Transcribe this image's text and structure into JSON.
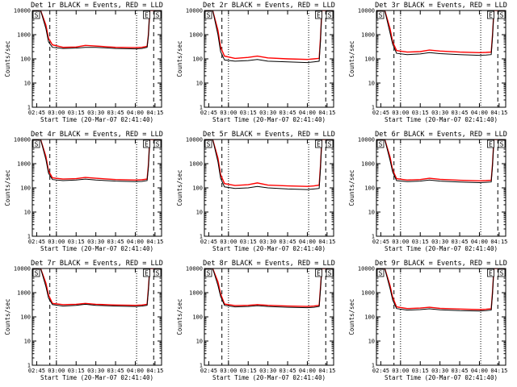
{
  "figure": {
    "x_tick_labels": [
      "02:45",
      "03:00",
      "03:15",
      "03:30",
      "03:45",
      "04:00",
      "04:15"
    ],
    "y_tick_labels": [
      "1",
      "10",
      "100",
      "1000",
      "10000"
    ],
    "xlabel": "Start Time (20-Mar-07 02:41:40)",
    "ylabel": "Counts/sec",
    "flag_labels": [
      "S",
      "E",
      "S"
    ],
    "colors": {
      "events": "#000000",
      "lld": "#ff0000",
      "axes": "#000000",
      "background": "#ffffff"
    }
  },
  "chart_data": [
    {
      "type": "line",
      "title": "Det 1r BLACK = Events, RED = LLD",
      "xlabel": "Start Time (20-Mar-07 02:41:40)",
      "ylabel": "Counts/sec",
      "x_range": [
        "02:41:40",
        "04:20"
      ],
      "ylim": [
        1,
        10000
      ],
      "y_scale": "log",
      "series": [
        {
          "name": "Events",
          "color": "#000000",
          "x": [
            "02:41:40",
            "02:48",
            "02:52",
            "02:54",
            "02:57",
            "03:05",
            "03:15",
            "03:22",
            "03:30",
            "03:45",
            "04:00",
            "04:05",
            "04:09",
            "04:10",
            "04:11",
            "04:12",
            "04:20"
          ],
          "values": [
            10000,
            10000,
            1800,
            500,
            300,
            270,
            280,
            300,
            300,
            270,
            260,
            270,
            300,
            900,
            10000,
            10000,
            10000
          ]
        },
        {
          "name": "LLD",
          "color": "#ff0000",
          "x": [
            "02:41:40",
            "02:48",
            "02:52",
            "02:54",
            "02:57",
            "03:05",
            "03:15",
            "03:22",
            "03:30",
            "03:45",
            "04:00",
            "04:05",
            "04:09",
            "04:10",
            "04:11",
            "04:12",
            "04:20"
          ],
          "values": [
            10000,
            10000,
            2500,
            700,
            380,
            300,
            310,
            360,
            340,
            300,
            290,
            300,
            330,
            1000,
            10000,
            10000,
            10000
          ]
        }
      ],
      "vlines": [
        "02:55",
        "03:00",
        "04:01",
        "04:14"
      ]
    },
    {
      "type": "line",
      "title": "Det 2r BLACK = Events, RED = LLD",
      "xlabel": "Start Time (20-Mar-07 02:41:40)",
      "ylabel": "Counts/sec",
      "x_range": [
        "02:41:40",
        "04:20"
      ],
      "ylim": [
        1,
        10000
      ],
      "y_scale": "log",
      "series": [
        {
          "name": "Events",
          "color": "#000000",
          "x": [
            "02:41:40",
            "02:48",
            "02:52",
            "02:54",
            "02:57",
            "03:05",
            "03:15",
            "03:22",
            "03:30",
            "03:45",
            "04:00",
            "04:05",
            "04:09",
            "04:10",
            "04:11",
            "04:12",
            "04:20"
          ],
          "values": [
            10000,
            10000,
            1000,
            200,
            90,
            80,
            85,
            95,
            80,
            75,
            70,
            75,
            80,
            500,
            10000,
            10000,
            10000
          ]
        },
        {
          "name": "LLD",
          "color": "#ff0000",
          "x": [
            "02:41:40",
            "02:48",
            "02:52",
            "02:54",
            "02:57",
            "03:05",
            "03:15",
            "03:22",
            "03:30",
            "03:45",
            "04:00",
            "04:05",
            "04:09",
            "04:10",
            "04:11",
            "04:12",
            "04:20"
          ],
          "values": [
            10000,
            10000,
            1500,
            300,
            130,
            105,
            115,
            130,
            110,
            100,
            95,
            100,
            105,
            700,
            10000,
            10000,
            10000
          ]
        }
      ],
      "vlines": [
        "02:55",
        "03:00",
        "04:01",
        "04:14"
      ]
    },
    {
      "type": "line",
      "title": "Det 3r BLACK = Events, RED = LLD",
      "xlabel": "Start Time (20-Mar-07 02:41:40)",
      "ylabel": "Counts/sec",
      "x_range": [
        "02:41:40",
        "04:20"
      ],
      "ylim": [
        1,
        10000
      ],
      "y_scale": "log",
      "series": [
        {
          "name": "Events",
          "color": "#000000",
          "x": [
            "02:41:40",
            "02:48",
            "02:52",
            "02:54",
            "02:57",
            "03:05",
            "03:15",
            "03:22",
            "03:30",
            "03:45",
            "04:00",
            "04:05",
            "04:09",
            "04:10",
            "04:11",
            "04:12",
            "04:20"
          ],
          "values": [
            10000,
            10000,
            1200,
            400,
            170,
            150,
            160,
            180,
            165,
            150,
            140,
            145,
            150,
            800,
            10000,
            10000,
            10000
          ]
        },
        {
          "name": "LLD",
          "color": "#ff0000",
          "x": [
            "02:41:40",
            "02:48",
            "02:52",
            "02:54",
            "02:57",
            "03:05",
            "03:15",
            "03:22",
            "03:30",
            "03:45",
            "04:00",
            "04:05",
            "04:09",
            "04:10",
            "04:11",
            "04:12",
            "04:20"
          ],
          "values": [
            10000,
            10000,
            1800,
            500,
            220,
            190,
            200,
            230,
            210,
            190,
            180,
            185,
            190,
            1000,
            10000,
            10000,
            10000
          ]
        }
      ],
      "vlines": [
        "02:55",
        "03:00",
        "04:01",
        "04:14"
      ]
    },
    {
      "type": "line",
      "title": "Det 4r BLACK = Events, RED = LLD",
      "xlabel": "Start Time (20-Mar-07 02:41:40)",
      "ylabel": "Counts/sec",
      "x_range": [
        "02:41:40",
        "04:20"
      ],
      "ylim": [
        1,
        10000
      ],
      "y_scale": "log",
      "series": [
        {
          "name": "Events",
          "color": "#000000",
          "x": [
            "02:41:40",
            "02:48",
            "02:52",
            "02:54",
            "02:57",
            "03:05",
            "03:15",
            "03:22",
            "03:30",
            "03:45",
            "04:00",
            "04:05",
            "04:09",
            "04:10",
            "04:11",
            "04:12",
            "04:20"
          ],
          "values": [
            10000,
            10000,
            1500,
            400,
            220,
            200,
            210,
            230,
            210,
            190,
            180,
            185,
            200,
            700,
            10000,
            10000,
            10000
          ]
        },
        {
          "name": "LLD",
          "color": "#ff0000",
          "x": [
            "02:41:40",
            "02:48",
            "02:52",
            "02:54",
            "02:57",
            "03:05",
            "03:15",
            "03:22",
            "03:30",
            "03:45",
            "04:00",
            "04:05",
            "04:09",
            "04:10",
            "04:11",
            "04:12",
            "04:20"
          ],
          "values": [
            10000,
            10000,
            2000,
            500,
            260,
            230,
            240,
            270,
            250,
            220,
            210,
            215,
            230,
            900,
            10000,
            10000,
            10000
          ]
        }
      ],
      "vlines": [
        "02:55",
        "03:00",
        "04:01",
        "04:14"
      ]
    },
    {
      "type": "line",
      "title": "Det 5r BLACK = Events, RED = LLD",
      "xlabel": "Start Time (20-Mar-07 02:41:40)",
      "ylabel": "Counts/sec",
      "x_range": [
        "02:41:40",
        "04:20"
      ],
      "ylim": [
        1,
        10000
      ],
      "y_scale": "log",
      "series": [
        {
          "name": "Events",
          "color": "#000000",
          "x": [
            "02:41:40",
            "02:48",
            "02:52",
            "02:54",
            "02:57",
            "03:05",
            "03:15",
            "03:22",
            "03:30",
            "03:45",
            "04:00",
            "04:05",
            "04:09",
            "04:10",
            "04:11",
            "04:12",
            "04:20"
          ],
          "values": [
            10000,
            10000,
            1200,
            250,
            110,
            95,
            100,
            115,
            100,
            90,
            85,
            90,
            95,
            600,
            10000,
            10000,
            10000
          ]
        },
        {
          "name": "LLD",
          "color": "#ff0000",
          "x": [
            "02:41:40",
            "02:48",
            "02:52",
            "02:54",
            "02:57",
            "03:05",
            "03:15",
            "03:22",
            "03:30",
            "03:45",
            "04:00",
            "04:05",
            "04:09",
            "04:10",
            "04:11",
            "04:12",
            "04:20"
          ],
          "values": [
            10000,
            10000,
            1700,
            350,
            150,
            125,
            135,
            160,
            130,
            120,
            115,
            120,
            130,
            800,
            10000,
            10000,
            10000
          ]
        }
      ],
      "vlines": [
        "02:55",
        "03:00",
        "04:01",
        "04:14"
      ]
    },
    {
      "type": "line",
      "title": "Det 6r BLACK = Events, RED = LLD",
      "xlabel": "Start Time (20-Mar-07 02:41:40)",
      "ylabel": "Counts/sec",
      "x_range": [
        "02:41:40",
        "04:20"
      ],
      "ylim": [
        1,
        10000
      ],
      "y_scale": "log",
      "series": [
        {
          "name": "Events",
          "color": "#000000",
          "x": [
            "02:41:40",
            "02:48",
            "02:52",
            "02:54",
            "02:57",
            "03:05",
            "03:15",
            "03:22",
            "03:30",
            "03:45",
            "04:00",
            "04:05",
            "04:09",
            "04:10",
            "04:11",
            "04:12",
            "04:20"
          ],
          "values": [
            10000,
            10000,
            1400,
            450,
            200,
            180,
            190,
            210,
            190,
            175,
            165,
            170,
            175,
            800,
            10000,
            10000,
            10000
          ]
        },
        {
          "name": "LLD",
          "color": "#ff0000",
          "x": [
            "02:41:40",
            "02:48",
            "02:52",
            "02:54",
            "02:57",
            "03:05",
            "03:15",
            "03:22",
            "03:30",
            "03:45",
            "04:00",
            "04:05",
            "04:09",
            "04:10",
            "04:11",
            "04:12",
            "04:20"
          ],
          "values": [
            10000,
            10000,
            1900,
            550,
            240,
            210,
            220,
            250,
            225,
            205,
            195,
            200,
            205,
            1000,
            10000,
            10000,
            10000
          ]
        }
      ],
      "vlines": [
        "02:55",
        "03:00",
        "04:01",
        "04:14"
      ]
    },
    {
      "type": "line",
      "title": "Det 7r BLACK = Events, RED = LLD",
      "xlabel": "Start Time (20-Mar-07 02:41:40)",
      "ylabel": "Counts/sec",
      "x_range": [
        "02:41:40",
        "04:20"
      ],
      "ylim": [
        1,
        10000
      ],
      "y_scale": "log",
      "series": [
        {
          "name": "Events",
          "color": "#000000",
          "x": [
            "02:41:40",
            "02:48",
            "02:52",
            "02:54",
            "02:57",
            "03:05",
            "03:15",
            "03:22",
            "03:30",
            "03:45",
            "04:00",
            "04:05",
            "04:09",
            "04:10",
            "04:11",
            "04:12",
            "04:20"
          ],
          "values": [
            10000,
            10000,
            1800,
            600,
            320,
            280,
            300,
            330,
            300,
            280,
            270,
            280,
            300,
            1200,
            10000,
            10000,
            10000
          ]
        },
        {
          "name": "LLD",
          "color": "#ff0000",
          "x": [
            "02:41:40",
            "02:48",
            "02:52",
            "02:54",
            "02:57",
            "03:05",
            "03:15",
            "03:22",
            "03:30",
            "03:45",
            "04:00",
            "04:05",
            "04:09",
            "04:10",
            "04:11",
            "04:12",
            "04:20"
          ],
          "values": [
            10000,
            10000,
            2500,
            800,
            360,
            320,
            330,
            360,
            330,
            310,
            300,
            310,
            330,
            1500,
            10000,
            10000,
            10000
          ]
        }
      ],
      "vlines": [
        "02:55",
        "03:00",
        "04:01",
        "04:14"
      ]
    },
    {
      "type": "line",
      "title": "Det 8r BLACK = Events, RED = LLD",
      "xlabel": "Start Time (20-Mar-07 02:41:40)",
      "ylabel": "Counts/sec",
      "x_range": [
        "02:41:40",
        "04:20"
      ],
      "ylim": [
        1,
        10000
      ],
      "y_scale": "log",
      "series": [
        {
          "name": "Events",
          "color": "#000000",
          "x": [
            "02:41:40",
            "02:48",
            "02:52",
            "02:54",
            "02:57",
            "03:05",
            "03:15",
            "03:22",
            "03:30",
            "03:45",
            "04:00",
            "04:05",
            "04:09",
            "04:10",
            "04:11",
            "04:12",
            "04:20"
          ],
          "values": [
            10000,
            10000,
            2000,
            700,
            300,
            260,
            270,
            290,
            270,
            250,
            240,
            250,
            270,
            1300,
            10000,
            10000,
            10000
          ]
        },
        {
          "name": "LLD",
          "color": "#ff0000",
          "x": [
            "02:41:40",
            "02:48",
            "02:52",
            "02:54",
            "02:57",
            "03:05",
            "03:15",
            "03:22",
            "03:30",
            "03:45",
            "04:00",
            "04:05",
            "04:09",
            "04:10",
            "04:11",
            "04:12",
            "04:20"
          ],
          "values": [
            10000,
            10000,
            2800,
            900,
            340,
            290,
            300,
            320,
            300,
            280,
            270,
            280,
            300,
            1600,
            10000,
            10000,
            10000
          ]
        }
      ],
      "vlines": [
        "02:55",
        "03:00",
        "04:01",
        "04:14"
      ]
    },
    {
      "type": "line",
      "title": "Det 9r BLACK = Events, RED = LLD",
      "xlabel": "Start Time (20-Mar-07 02:41:40)",
      "ylabel": "Counts/sec",
      "x_range": [
        "02:41:40",
        "04:20"
      ],
      "ylim": [
        1,
        10000
      ],
      "y_scale": "log",
      "series": [
        {
          "name": "Events",
          "color": "#000000",
          "x": [
            "02:41:40",
            "02:48",
            "02:52",
            "02:54",
            "02:57",
            "03:05",
            "03:15",
            "03:22",
            "03:30",
            "03:45",
            "04:00",
            "04:05",
            "04:09",
            "04:10",
            "04:11",
            "04:12",
            "04:20"
          ],
          "values": [
            10000,
            10000,
            1500,
            500,
            220,
            190,
            200,
            215,
            195,
            180,
            175,
            180,
            190,
            900,
            10000,
            10000,
            10000
          ]
        },
        {
          "name": "LLD",
          "color": "#ff0000",
          "x": [
            "02:41:40",
            "02:48",
            "02:52",
            "02:54",
            "02:57",
            "03:05",
            "03:15",
            "03:22",
            "03:30",
            "03:45",
            "04:00",
            "04:05",
            "04:09",
            "04:10",
            "04:11",
            "04:12",
            "04:20"
          ],
          "values": [
            10000,
            10000,
            2000,
            650,
            260,
            220,
            230,
            250,
            225,
            210,
            200,
            205,
            215,
            1100,
            10000,
            10000,
            10000
          ]
        }
      ],
      "vlines": [
        "02:55",
        "03:00",
        "04:01",
        "04:14"
      ]
    }
  ]
}
